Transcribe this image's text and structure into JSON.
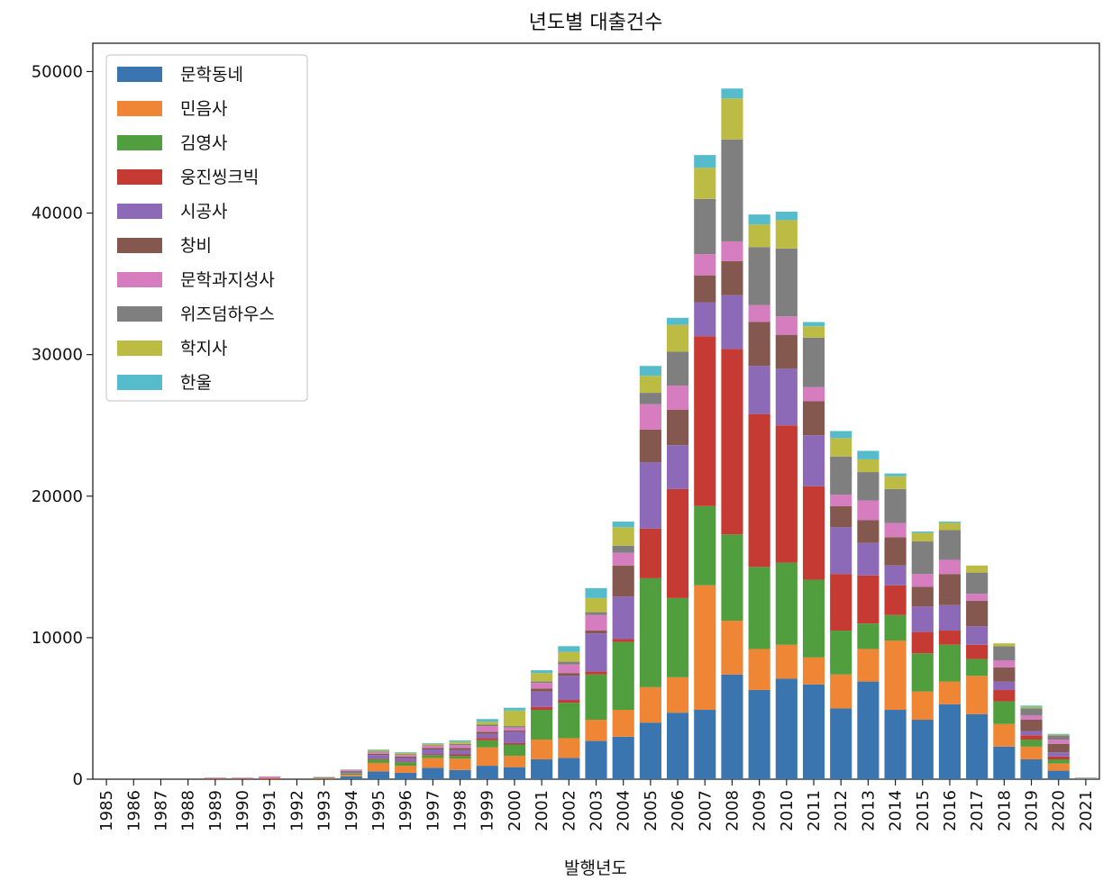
{
  "chart_data": {
    "type": "bar",
    "stacked": true,
    "title": "년도별 대출건수",
    "xlabel": "발행년도",
    "ylabel": "",
    "ylim": [
      0,
      52000
    ],
    "yticks": [
      0,
      10000,
      20000,
      30000,
      40000,
      50000
    ],
    "legend_position": "top-left",
    "categories": [
      "1985",
      "1986",
      "1987",
      "1988",
      "1989",
      "1990",
      "1991",
      "1992",
      "1993",
      "1994",
      "1995",
      "1996",
      "1997",
      "1998",
      "1999",
      "2000",
      "2001",
      "2002",
      "2003",
      "2004",
      "2005",
      "2006",
      "2007",
      "2008",
      "2009",
      "2010",
      "2011",
      "2012",
      "2013",
      "2014",
      "2015",
      "2016",
      "2017",
      "2018",
      "2019",
      "2020",
      "2021"
    ],
    "series": [
      {
        "name": "문학동네",
        "color": "#3b75af",
        "values": [
          0,
          0,
          0,
          0,
          0,
          0,
          0,
          0,
          20,
          200,
          550,
          450,
          800,
          650,
          950,
          850,
          1400,
          1500,
          2700,
          3000,
          4000,
          4700,
          4900,
          7400,
          6300,
          7100,
          6700,
          5000,
          6900,
          4900,
          4200,
          5300,
          4600,
          2300,
          1400,
          600,
          30
        ]
      },
      {
        "name": "민음사",
        "color": "#ef8636",
        "values": [
          0,
          0,
          0,
          0,
          20,
          20,
          30,
          0,
          40,
          100,
          600,
          500,
          700,
          800,
          1300,
          800,
          1400,
          1400,
          1500,
          1900,
          2500,
          2500,
          8800,
          3800,
          2900,
          2400,
          1900,
          2400,
          2300,
          4900,
          2000,
          1600,
          2700,
          1600,
          900,
          500,
          20
        ]
      },
      {
        "name": "김영사",
        "color": "#519e3e",
        "values": [
          0,
          0,
          0,
          0,
          0,
          0,
          0,
          0,
          30,
          100,
          250,
          250,
          200,
          200,
          500,
          800,
          2100,
          2500,
          3200,
          4800,
          7700,
          5600,
          5600,
          6100,
          5800,
          5800,
          5500,
          3100,
          1800,
          1800,
          2700,
          2600,
          1200,
          1600,
          500,
          300,
          10
        ]
      },
      {
        "name": "웅진씽크빅",
        "color": "#c53a32",
        "values": [
          0,
          0,
          0,
          0,
          10,
          20,
          50,
          0,
          10,
          30,
          50,
          50,
          50,
          100,
          150,
          100,
          200,
          200,
          200,
          200,
          3500,
          7700,
          12000,
          13100,
          10800,
          9700,
          6600,
          4000,
          3400,
          2100,
          1500,
          1000,
          1000,
          800,
          300,
          200,
          10
        ]
      },
      {
        "name": "시공사",
        "color": "#8d6ab8",
        "values": [
          0,
          0,
          0,
          0,
          20,
          20,
          20,
          0,
          20,
          100,
          250,
          250,
          350,
          300,
          300,
          800,
          1100,
          1700,
          2700,
          3000,
          4700,
          3100,
          2400,
          3800,
          3400,
          4000,
          3600,
          3300,
          2300,
          1400,
          1800,
          1800,
          1300,
          600,
          300,
          300,
          10
        ]
      },
      {
        "name": "창비",
        "color": "#84584e",
        "values": [
          0,
          0,
          0,
          0,
          10,
          10,
          10,
          0,
          10,
          50,
          100,
          100,
          100,
          150,
          150,
          100,
          200,
          200,
          200,
          2200,
          2300,
          2500,
          1900,
          2400,
          3100,
          2400,
          2400,
          1500,
          1600,
          2000,
          1400,
          2200,
          1800,
          1000,
          800,
          600,
          10
        ]
      },
      {
        "name": "문학과지성사",
        "color": "#d57dbe",
        "values": [
          0,
          0,
          0,
          0,
          50,
          40,
          80,
          0,
          20,
          80,
          100,
          100,
          150,
          200,
          400,
          200,
          400,
          600,
          1100,
          900,
          1800,
          1700,
          1500,
          1400,
          1200,
          1300,
          1000,
          800,
          1400,
          1000,
          900,
          1000,
          500,
          500,
          300,
          300,
          10
        ]
      },
      {
        "name": "위즈덤하우스",
        "color": "#7f7f7f",
        "values": [
          0,
          0,
          0,
          0,
          0,
          0,
          0,
          0,
          0,
          0,
          50,
          50,
          50,
          100,
          100,
          100,
          100,
          200,
          200,
          500,
          800,
          2400,
          3900,
          7200,
          4100,
          4800,
          3500,
          2700,
          2000,
          2400,
          2300,
          2100,
          1500,
          1000,
          500,
          300,
          10
        ]
      },
      {
        "name": "학지사",
        "color": "#bcbc45",
        "values": [
          0,
          0,
          0,
          0,
          10,
          10,
          10,
          0,
          10,
          20,
          100,
          100,
          100,
          150,
          200,
          1100,
          600,
          700,
          1000,
          1300,
          1200,
          1900,
          2200,
          2900,
          1600,
          2000,
          800,
          1300,
          900,
          900,
          600,
          500,
          500,
          200,
          100,
          50,
          10
        ]
      },
      {
        "name": "한울",
        "color": "#56bccc",
        "values": [
          0,
          0,
          0,
          0,
          0,
          0,
          0,
          0,
          10,
          20,
          50,
          50,
          50,
          100,
          200,
          200,
          200,
          400,
          700,
          400,
          700,
          500,
          900,
          700,
          700,
          600,
          300,
          500,
          600,
          200,
          100,
          100,
          0,
          0,
          100,
          50,
          10
        ]
      }
    ]
  }
}
